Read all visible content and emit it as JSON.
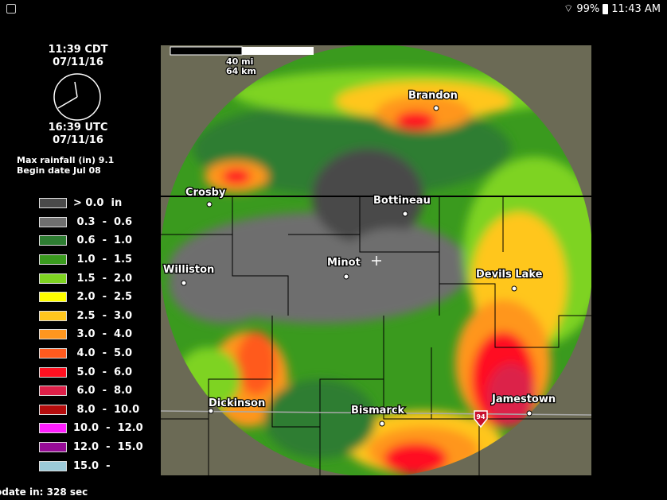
{
  "status_bar": {
    "battery": "99%",
    "time": "11:43 AM",
    "icons": [
      "gallery-icon",
      "wifi-icon",
      "battery-icon"
    ]
  },
  "clock": {
    "local_time": "11:39  CDT",
    "local_date": "07/11/16",
    "utc_time": "16:39  UTC",
    "utc_date": "07/11/16"
  },
  "info": {
    "max_rainfall": "Max rainfall (in) 9.1",
    "begin_date": "Begin date Jul 08"
  },
  "legend": [
    {
      "label": "> 0.0  in",
      "color": "#4a4a4a"
    },
    {
      "label": " 0.3  -  0.6",
      "color": "#6e6e6e"
    },
    {
      "label": " 0.6  -  1.0",
      "color": "#2e7d32"
    },
    {
      "label": " 1.0  -  1.5",
      "color": "#3a9a1e"
    },
    {
      "label": " 1.5  -  2.0",
      "color": "#7ed321"
    },
    {
      "label": " 2.0  -  2.5",
      "color": "#ffff00"
    },
    {
      "label": " 2.5  -  3.0",
      "color": "#ffc61e"
    },
    {
      "label": " 3.0  -  4.0",
      "color": "#ff961e"
    },
    {
      "label": " 4.0  -  5.0",
      "color": "#ff5a1e"
    },
    {
      "label": " 5.0  -  6.0",
      "color": "#ff1020"
    },
    {
      "label": " 6.0  -  8.0",
      "color": "#dc2048"
    },
    {
      "label": " 8.0  -  10.0",
      "color": "#b40c0c"
    },
    {
      "label": "10.0  -  12.0",
      "color": "#ff1eff"
    },
    {
      "label": "12.0  -  15.0",
      "color": "#960c96"
    },
    {
      "label": "15.0  -",
      "color": "#9ccad8"
    }
  ],
  "update": "odate in: 328 sec",
  "map": {
    "scale": {
      "mi": "40 mi",
      "km": "64 km"
    },
    "cities": {
      "brandon": "Brandon",
      "crosby": "Crosby",
      "bottineau": "Bottineau",
      "minot": "Minot",
      "williston": "Williston",
      "devils_lake": "Devils Lake",
      "dickinson": "Dickinson",
      "bismarck": "Bismarck",
      "jamestown": "Jamestown"
    },
    "highway": "94",
    "background_color": "#6b6a55"
  }
}
